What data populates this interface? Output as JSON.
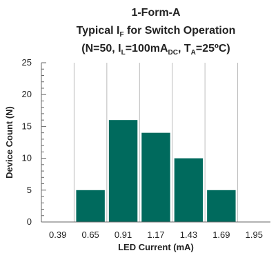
{
  "chart_data": {
    "type": "bar",
    "title_lines": [
      {
        "segments": [
          {
            "text": "1-Form-A",
            "sub": false
          }
        ]
      },
      {
        "segments": [
          {
            "text": "Typical I",
            "sub": false
          },
          {
            "text": "F",
            "sub": true
          },
          {
            "text": " for Switch Operation",
            "sub": false
          }
        ]
      },
      {
        "segments": [
          {
            "text": "(N=50, I",
            "sub": false
          },
          {
            "text": "L",
            "sub": true
          },
          {
            "text": "=100mA",
            "sub": false
          },
          {
            "text": "DC",
            "sub": true
          },
          {
            "text": ", T",
            "sub": false
          },
          {
            "text": "A",
            "sub": true
          },
          {
            "text": "=25ºC)",
            "sub": false
          }
        ]
      }
    ],
    "xlabel": "LED Current (mA)",
    "ylabel": "Device Count (N)",
    "categories": [
      "0.39",
      "0.65",
      "0.91",
      "1.17",
      "1.43",
      "1.69",
      "1.95"
    ],
    "values": [
      0,
      5,
      16,
      14,
      10,
      5,
      0
    ],
    "ylim": [
      0,
      25
    ],
    "yticks": [
      0,
      5,
      10,
      15,
      20,
      25
    ],
    "grid": "vertical",
    "bar_color": "#006a5d",
    "axis_color": "#666666",
    "text_color": "#222222"
  }
}
